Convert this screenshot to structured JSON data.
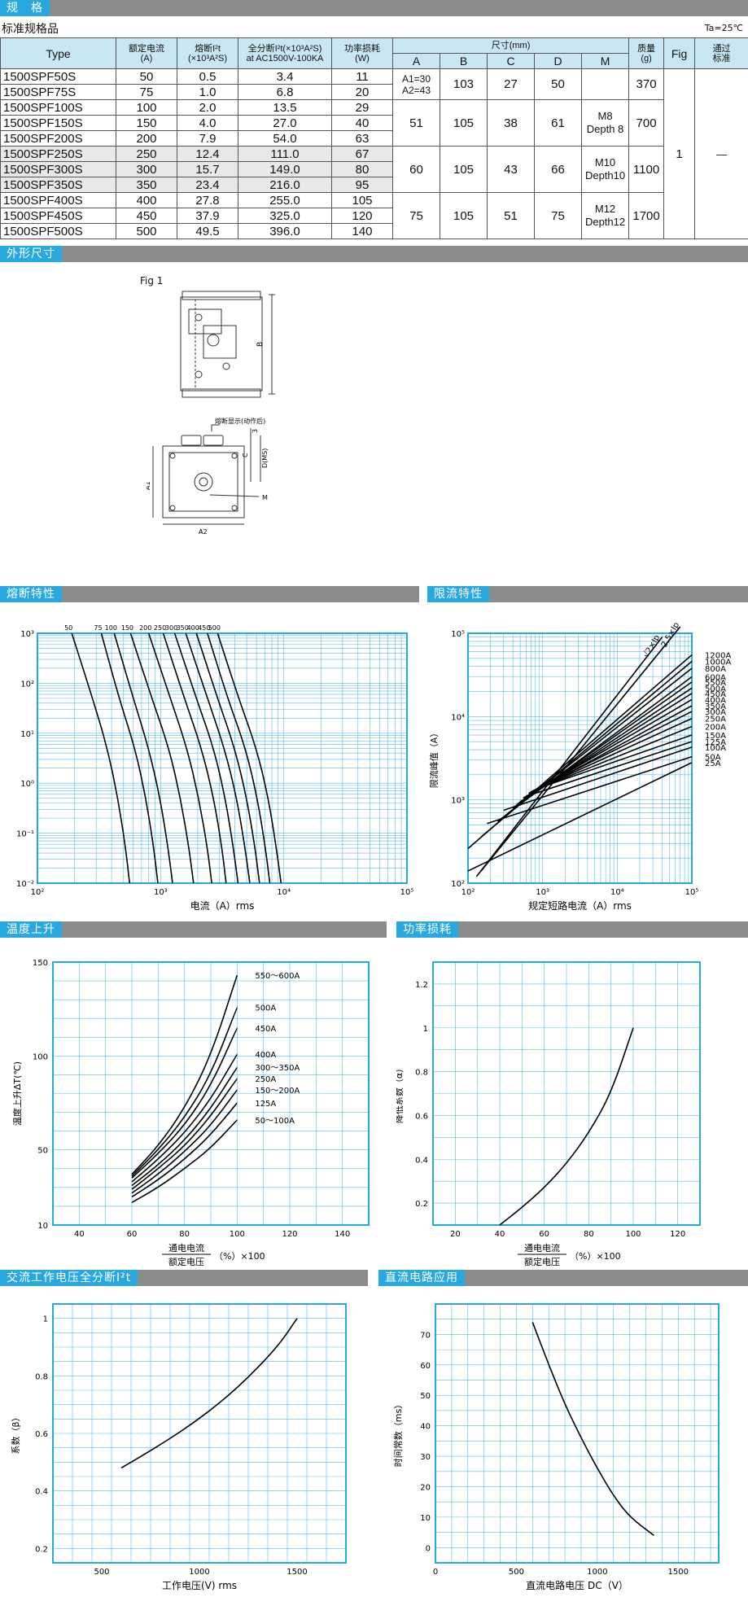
{
  "sections": {
    "spec": "规　格",
    "outline": "外形尺寸",
    "fusing": "熔断特性",
    "limiting": "限流特性",
    "temp": "温度上升",
    "power": "功率损耗",
    "ac_i2t": "交流工作电压全分断I²t",
    "dc": "直流电路应用"
  },
  "subtitle": "标准规格品",
  "ta_note": "Ta=25℃",
  "table": {
    "headers": {
      "type": "Type",
      "rated_current": "额定电流\n(A)",
      "melting_i2t": "熔断I²t\n(×10³A²S)",
      "total_i2t": "全分断I²t(×10³A²S)\nat AC1500V-100KA",
      "power_loss": "功率损耗\n(W)",
      "dimensions": "尺寸(mm)",
      "A": "A",
      "B": "B",
      "C": "C",
      "D": "D",
      "M": "M",
      "mass": "质量\n(g)",
      "fig": "Fig",
      "approved": "通过\n标准"
    },
    "rows": [
      {
        "type": "1500SPF50S",
        "current": "50",
        "melt": "0.5",
        "total": "3.4",
        "loss": "11"
      },
      {
        "type": "1500SPF75S",
        "current": "75",
        "melt": "1.0",
        "total": "6.8",
        "loss": "20"
      },
      {
        "type": "1500SPF100S",
        "current": "100",
        "melt": "2.0",
        "total": "13.5",
        "loss": "29"
      },
      {
        "type": "1500SPF150S",
        "current": "150",
        "melt": "4.0",
        "total": "27.0",
        "loss": "40"
      },
      {
        "type": "1500SPF200S",
        "current": "200",
        "melt": "7.9",
        "total": "54.0",
        "loss": "63"
      },
      {
        "type": "1500SPF250S",
        "current": "250",
        "melt": "12.4",
        "total": "111.0",
        "loss": "67"
      },
      {
        "type": "1500SPF300S",
        "current": "300",
        "melt": "15.7",
        "total": "149.0",
        "loss": "80"
      },
      {
        "type": "1500SPF350S",
        "current": "350",
        "melt": "23.4",
        "total": "216.0",
        "loss": "95"
      },
      {
        "type": "1500SPF400S",
        "current": "400",
        "melt": "27.8",
        "total": "255.0",
        "loss": "105"
      },
      {
        "type": "1500SPF450S",
        "current": "450",
        "melt": "37.9",
        "total": "325.0",
        "loss": "120"
      },
      {
        "type": "1500SPF500S",
        "current": "500",
        "melt": "49.5",
        "total": "396.0",
        "loss": "140"
      }
    ],
    "groups": [
      {
        "A": "A1=30\nA2=43",
        "B": "103",
        "C": "27",
        "D": "50",
        "mass": "370"
      },
      {
        "A": "51",
        "B": "105",
        "C": "38",
        "D": "61",
        "mass": "700"
      },
      {
        "A": "60",
        "B": "105",
        "C": "43",
        "D": "66",
        "mass": "1100"
      },
      {
        "A": "75",
        "B": "105",
        "C": "51",
        "D": "75",
        "mass": "1700"
      }
    ],
    "M": [
      "M8\nDepth 8",
      "M10\nDepth10",
      "M12\nDepth12"
    ],
    "fig_value": "1",
    "approved_value": "—"
  },
  "outline": {
    "fig_label": "Fig 1",
    "dim_B": "B",
    "indicator": "熔断显示(动作后)",
    "dim_3": "3",
    "dim_C": "C",
    "dim_D": "D(MS)",
    "dim_A1": "A1",
    "dim_A2": "A2",
    "dim_M": "M"
  },
  "chart_data": [
    {
      "type": "line",
      "title": "熔断特性",
      "xlabel": "电流（A）rms",
      "ylabel": "",
      "x_scale": "log",
      "y_scale": "log",
      "xlim": [
        100,
        100000
      ],
      "ylim": [
        0.01,
        1000
      ],
      "x_ticks": [
        "10²",
        "10³",
        "10⁴",
        "10⁵"
      ],
      "y_ticks": [
        "10³",
        "10²",
        "10¹",
        "10⁰",
        "10⁻¹",
        "10⁻²"
      ],
      "series": [
        {
          "name": "50",
          "x": [
            190,
            280,
            370,
            450,
            520,
            560
          ],
          "y": [
            1000,
            50,
            5,
            0.5,
            0.05,
            0.01
          ]
        },
        {
          "name": "75",
          "x": [
            330,
            460,
            620,
            760,
            880,
            950
          ],
          "y": [
            1000,
            50,
            5,
            0.5,
            0.05,
            0.01
          ]
        },
        {
          "name": "100",
          "x": [
            420,
            600,
            800,
            990,
            1150,
            1250
          ],
          "y": [
            1000,
            50,
            5,
            0.5,
            0.05,
            0.01
          ]
        },
        {
          "name": "150",
          "x": [
            570,
            850,
            1170,
            1450,
            1700,
            1850
          ],
          "y": [
            1000,
            50,
            5,
            0.5,
            0.05,
            0.01
          ]
        },
        {
          "name": "200",
          "x": [
            800,
            1200,
            1640,
            2040,
            2400,
            2600
          ],
          "y": [
            1000,
            50,
            5,
            0.5,
            0.05,
            0.01
          ]
        },
        {
          "name": "250",
          "x": [
            1050,
            1560,
            2150,
            2700,
            3150,
            3400
          ],
          "y": [
            1000,
            50,
            5,
            0.5,
            0.05,
            0.01
          ]
        },
        {
          "name": "300",
          "x": [
            1300,
            1950,
            2700,
            3350,
            3900,
            4250
          ],
          "y": [
            1000,
            50,
            5,
            0.5,
            0.05,
            0.01
          ]
        },
        {
          "name": "350",
          "x": [
            1600,
            2400,
            3300,
            4150,
            4850,
            5300
          ],
          "y": [
            1000,
            50,
            5,
            0.5,
            0.05,
            0.01
          ]
        },
        {
          "name": "400",
          "x": [
            1950,
            2900,
            4000,
            5000,
            5850,
            6350
          ],
          "y": [
            1000,
            50,
            5,
            0.5,
            0.05,
            0.01
          ]
        },
        {
          "name": "450",
          "x": [
            2400,
            3500,
            4900,
            6100,
            7100,
            7700
          ],
          "y": [
            1000,
            50,
            5,
            0.5,
            0.05,
            0.01
          ]
        },
        {
          "name": "500",
          "x": [
            2900,
            4300,
            6000,
            7500,
            8700,
            9500
          ],
          "y": [
            1000,
            50,
            5,
            0.5,
            0.05,
            0.01
          ]
        }
      ]
    },
    {
      "type": "line",
      "title": "限流特性",
      "xlabel": "规定短路电流（A）rms",
      "ylabel": "限流峰值（A）",
      "x_scale": "log",
      "y_scale": "log",
      "xlim": [
        100,
        100000
      ],
      "ylim": [
        100,
        100000
      ],
      "x_ticks": [
        "10²",
        "10³",
        "10⁴",
        "10⁵"
      ],
      "y_ticks": [
        "10⁵",
        "10⁴",
        "10³",
        "10²"
      ],
      "reference_lines": [
        {
          "name": "2.5×Ip",
          "x": [
            150,
            70000
          ],
          "y": [
            140,
            120000
          ]
        },
        {
          "name": "√2×Ip",
          "x": [
            130,
            40000
          ],
          "y": [
            120,
            90000
          ]
        }
      ],
      "series": [
        {
          "name": "1200A",
          "x": [
            100,
            100000
          ],
          "y": [
            260,
            55000
          ]
        },
        {
          "name": "1000A",
          "x": [
            150,
            100000
          ],
          "y": [
            360,
            46000
          ]
        },
        {
          "name": "800A",
          "x": [
            250,
            100000
          ],
          "y": [
            550,
            38000
          ]
        },
        {
          "name": "600A",
          "x": [
            350,
            100000
          ],
          "y": [
            700,
            30000
          ]
        },
        {
          "name": "550A",
          "x": [
            400,
            100000
          ],
          "y": [
            800,
            26000
          ]
        },
        {
          "name": "500A",
          "x": [
            450,
            100000
          ],
          "y": [
            880,
            22000
          ]
        },
        {
          "name": "450A",
          "x": [
            500,
            100000
          ],
          "y": [
            950,
            19000
          ]
        },
        {
          "name": "400A",
          "x": [
            550,
            100000
          ],
          "y": [
            1050,
            16000
          ]
        },
        {
          "name": "350A",
          "x": [
            600,
            100000
          ],
          "y": [
            1100,
            13500
          ]
        },
        {
          "name": "300A",
          "x": [
            650,
            100000
          ],
          "y": [
            1200,
            11500
          ]
        },
        {
          "name": "250A",
          "x": [
            700,
            100000
          ],
          "y": [
            1250,
            9500
          ]
        },
        {
          "name": "200A",
          "x": [
            760,
            100000
          ],
          "y": [
            1300,
            7600
          ]
        },
        {
          "name": "150A",
          "x": [
            820,
            100000
          ],
          "y": [
            1350,
            6000
          ]
        },
        {
          "name": "125A",
          "x": [
            600,
            100000
          ],
          "y": [
            1100,
            5000
          ]
        },
        {
          "name": "100A",
          "x": [
            300,
            100000
          ],
          "y": [
            750,
            4300
          ]
        },
        {
          "name": "50A",
          "x": [
            180,
            100000
          ],
          "y": [
            520,
            3300
          ]
        },
        {
          "name": "25A",
          "x": [
            100,
            100000
          ],
          "y": [
            140,
            2800
          ]
        }
      ]
    },
    {
      "type": "line",
      "title": "温度上升",
      "xlabel_top": "通电电流",
      "xlabel_bottom": "额定电压",
      "xlabel_suffix": "（%）×100",
      "ylabel": "温度上升ΔT(℃)",
      "xlim": [
        30,
        150
      ],
      "ylim": [
        10,
        150
      ],
      "x_ticks": [
        40,
        60,
        80,
        100,
        120,
        140
      ],
      "y_ticks": [
        10,
        50,
        100,
        150
      ],
      "series": [
        {
          "name": "550〜600A",
          "x": [
            60,
            70,
            80,
            90,
            100
          ],
          "y": [
            37,
            52,
            72,
            100,
            143
          ]
        },
        {
          "name": "500A",
          "x": [
            60,
            70,
            80,
            90,
            100
          ],
          "y": [
            36,
            50,
            67,
            90,
            126
          ]
        },
        {
          "name": "450A",
          "x": [
            60,
            70,
            80,
            90,
            100
          ],
          "y": [
            35,
            48,
            63,
            84,
            115
          ]
        },
        {
          "name": "400A",
          "x": [
            60,
            70,
            80,
            90,
            100
          ],
          "y": [
            33,
            45,
            59,
            77,
            101
          ]
        },
        {
          "name": "300〜350A",
          "x": [
            60,
            70,
            80,
            90,
            100
          ],
          "y": [
            31,
            42,
            55,
            72,
            94
          ]
        },
        {
          "name": "250A",
          "x": [
            60,
            70,
            80,
            90,
            100
          ],
          "y": [
            29,
            40,
            52,
            68,
            88
          ]
        },
        {
          "name": "150〜200A",
          "x": [
            60,
            70,
            80,
            90,
            100
          ],
          "y": [
            27,
            37,
            49,
            63,
            82
          ]
        },
        {
          "name": "125A",
          "x": [
            60,
            70,
            80,
            90,
            100
          ],
          "y": [
            25,
            34,
            45,
            58,
            75
          ]
        },
        {
          "name": "50〜100A",
          "x": [
            60,
            70,
            80,
            90,
            100
          ],
          "y": [
            22,
            30,
            40,
            51,
            66
          ]
        }
      ]
    },
    {
      "type": "line",
      "title": "功率损耗",
      "xlabel_top": "通电电流",
      "xlabel_bottom": "额定电压",
      "xlabel_suffix": "（%）×100",
      "ylabel": "降低系数（α）",
      "xlim": [
        10,
        130
      ],
      "ylim": [
        0.1,
        1.3
      ],
      "x_ticks": [
        20,
        40,
        60,
        80,
        100,
        120
      ],
      "y_ticks": [
        0.2,
        0.4,
        0.6,
        0.8,
        1,
        1.2
      ],
      "series": [
        {
          "name": "",
          "x": [
            40,
            50,
            60,
            70,
            80,
            90,
            100
          ],
          "y": [
            0.1,
            0.18,
            0.27,
            0.38,
            0.52,
            0.7,
            1.0
          ]
        }
      ]
    },
    {
      "type": "line",
      "title": "交流工作电压全分断I²t",
      "xlabel": "工作电压(V) rms",
      "ylabel": "系数（β）",
      "xlim": [
        250,
        1750
      ],
      "ylim": [
        0.15,
        1.05
      ],
      "x_ticks": [
        500,
        1000,
        1500
      ],
      "y_ticks": [
        0.2,
        0.4,
        0.6,
        0.8,
        1.0
      ],
      "series": [
        {
          "name": "",
          "x": [
            600,
            800,
            1000,
            1200,
            1400,
            1500
          ],
          "y": [
            0.48,
            0.56,
            0.65,
            0.76,
            0.9,
            1.0
          ]
        }
      ]
    },
    {
      "type": "line",
      "title": "直流电路应用",
      "xlabel": "直流电路电压 DC（V）",
      "ylabel": "时间常数（ms）",
      "xlim": [
        0,
        1750
      ],
      "ylim": [
        -5,
        80
      ],
      "x_ticks": [
        0,
        500,
        1000,
        1500
      ],
      "y_ticks": [
        0,
        10,
        20,
        30,
        40,
        50,
        60,
        70
      ],
      "series": [
        {
          "name": "",
          "x": [
            600,
            700,
            800,
            900,
            1000,
            1100,
            1200,
            1350
          ],
          "y": [
            74,
            60,
            47,
            36,
            26,
            17,
            10,
            4
          ]
        }
      ]
    }
  ]
}
